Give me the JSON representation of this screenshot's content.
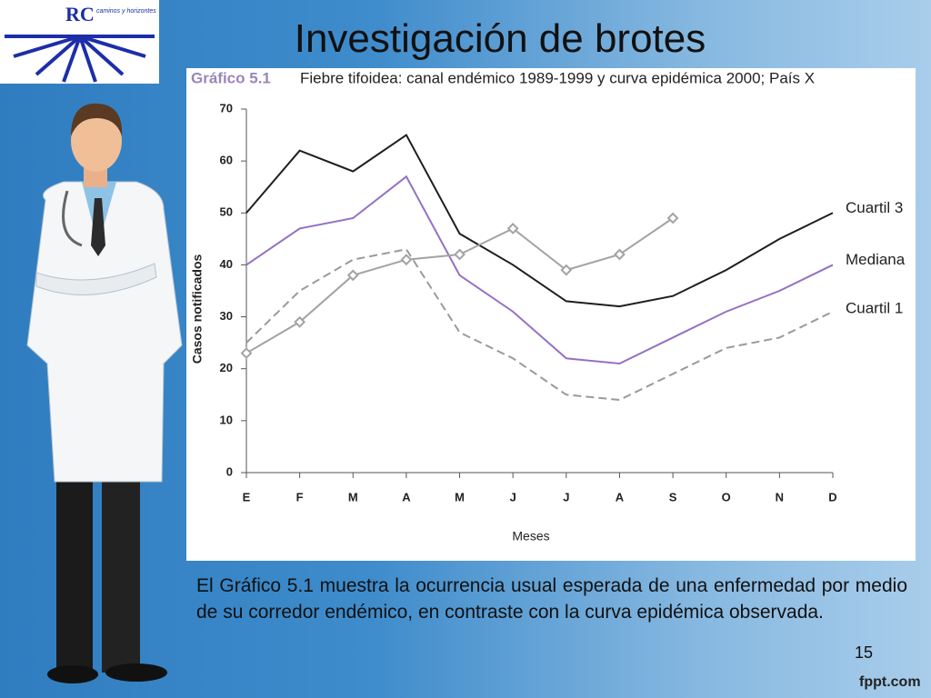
{
  "slide": {
    "title": "Investigación de brotes",
    "logo_text": "caminos y horizontes",
    "body": "El Gráfico 5.1 muestra la ocurrencia usual esperada de una enfermedad por medio de su corredor endémico, en contraste con la curva epidémica observada.",
    "page_number": "15",
    "footer": "fppt.com"
  },
  "chart_data": {
    "type": "line",
    "title_prefix": "Gráfico 5.1",
    "title": "Fiebre tifoidea: canal endémico 1989-1999 y curva epidémica 2000; País X",
    "x_label": "Meses",
    "y_label": "Casos notificados",
    "categories": [
      "E",
      "F",
      "M",
      "A",
      "M",
      "J",
      "J",
      "A",
      "S",
      "O",
      "N",
      "D"
    ],
    "ylim": [
      0,
      70
    ],
    "yticks": [
      0,
      10,
      20,
      30,
      40,
      50,
      60,
      70
    ],
    "grid": false,
    "series": [
      {
        "name": "Cuartil 3",
        "color": "#1e1e1e",
        "dashed": false,
        "values": [
          50,
          62,
          58,
          65,
          46,
          40,
          33,
          32,
          34,
          39,
          45,
          50
        ]
      },
      {
        "name": "Mediana",
        "color": "#9470c2",
        "dashed": false,
        "values": [
          40,
          47,
          49,
          57,
          38,
          31,
          22,
          21,
          26,
          31,
          35,
          40
        ]
      },
      {
        "name": "Cuartil 1",
        "color": "#9a9a9a",
        "dashed": true,
        "values": [
          25,
          35,
          41,
          43,
          27,
          22,
          15,
          14,
          19,
          24,
          26,
          31
        ]
      },
      {
        "color": "#a3a3a3",
        "dashed": false,
        "marker": "diamond",
        "values": [
          23,
          29,
          38,
          41,
          42,
          47,
          39,
          42,
          49,
          null,
          null,
          null
        ]
      }
    ]
  }
}
